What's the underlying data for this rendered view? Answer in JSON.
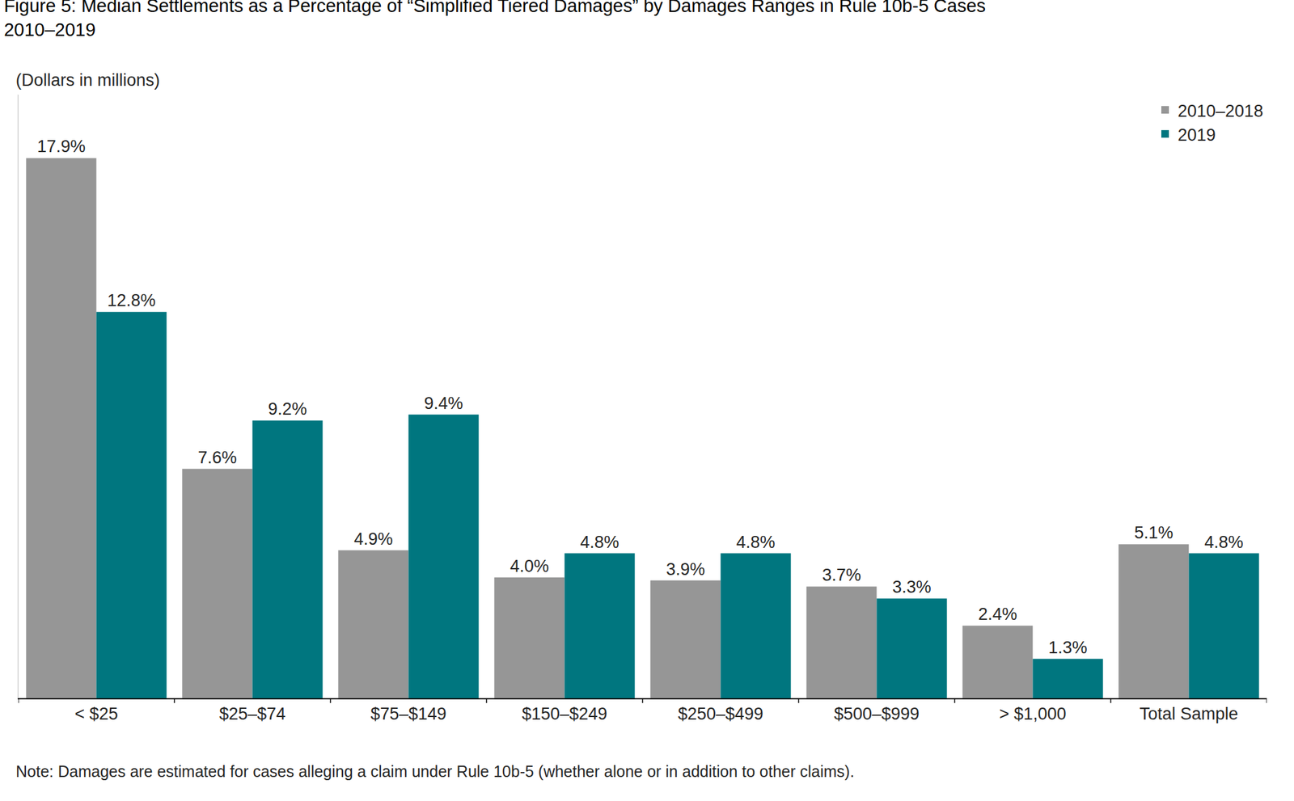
{
  "chart_data": {
    "type": "bar",
    "title": "Figure 5: Median Settlements as a Percentage of “Simplified Tiered Damages” by Damages Ranges in Rule 10b-5 Cases\n2010–2019",
    "subtitle": "(Dollars in millions)",
    "annotations": [
      "Note: Damages are estimated for cases alleging a claim under Rule 10b-5 (whether alone or in addition to other claims)."
    ],
    "categories": [
      "< $25",
      "$25–$74",
      "$75–$149",
      "$150–$249",
      "$250–$499",
      "$500–$999",
      "> $1,000",
      "Total Sample"
    ],
    "series": [
      {
        "name": "2010–2018",
        "color": "#969696",
        "values": [
          17.9,
          7.6,
          4.9,
          4.0,
          3.9,
          3.7,
          2.4,
          5.1
        ],
        "value_labels": [
          "17.9%",
          "7.6%",
          "4.9%",
          "4.0%",
          "3.9%",
          "3.7%",
          "2.4%",
          "5.1%"
        ]
      },
      {
        "name": "2019",
        "color": "#00767f",
        "values": [
          12.8,
          9.2,
          9.4,
          4.8,
          4.8,
          3.3,
          1.3,
          4.8
        ],
        "value_labels": [
          "12.8%",
          "9.2%",
          "9.4%",
          "4.8%",
          "4.8%",
          "3.3%",
          "1.3%",
          "4.8%"
        ]
      }
    ],
    "ylim": [
      0,
      20
    ],
    "yticks": [],
    "grid": false,
    "legend": "top right",
    "data_labels": true,
    "tick_labels": "x"
  }
}
